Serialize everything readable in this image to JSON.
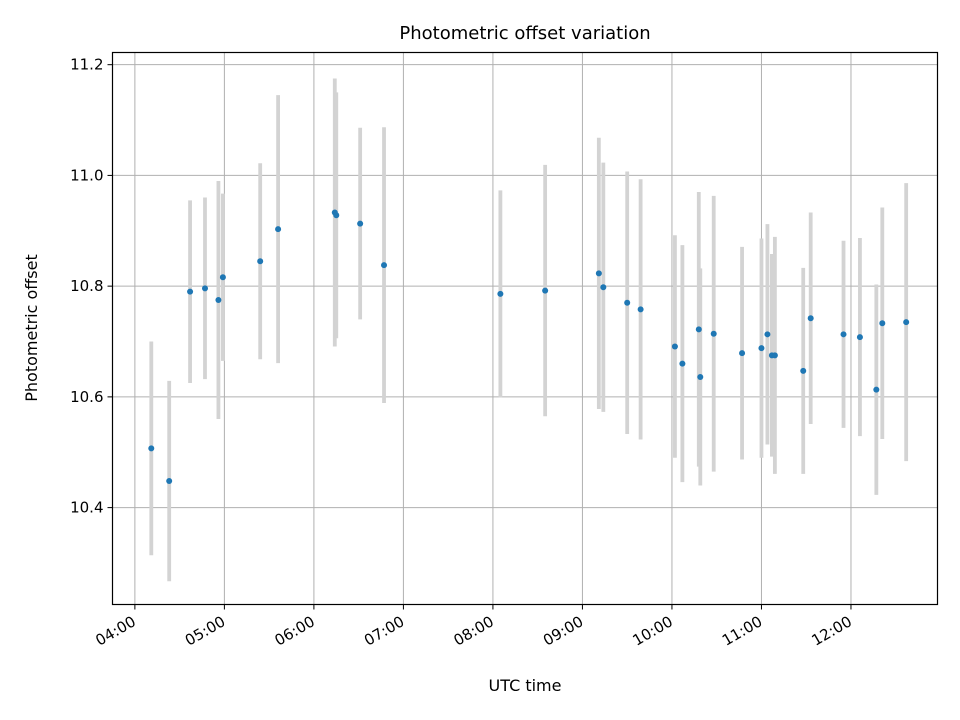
{
  "chart_data": {
    "type": "scatter",
    "title": "Photometric offset variation",
    "xlabel": "UTC time",
    "ylabel": "Photometric offset",
    "x_tick_labels": [
      "04:00",
      "05:00",
      "06:00",
      "07:00",
      "08:00",
      "09:00",
      "10:00",
      "11:00",
      "12:00"
    ],
    "y_ticks": [
      "10.4",
      "10.6",
      "10.8",
      "11.0",
      "11.2"
    ],
    "xlim": [
      "03:45",
      "12:58"
    ],
    "ylim": [
      10.225,
      11.222
    ],
    "grid": true,
    "marker_color": "#1f77b4",
    "errorbar_color": "#d3d3d3",
    "points": [
      {
        "x": "04:11",
        "y": 10.507,
        "err": 0.193
      },
      {
        "x": "04:23",
        "y": 10.448,
        "err": 0.181
      },
      {
        "x": "04:37",
        "y": 10.79,
        "err": 0.165
      },
      {
        "x": "04:47",
        "y": 10.796,
        "err": 0.164
      },
      {
        "x": "04:56",
        "y": 10.775,
        "err": 0.215
      },
      {
        "x": "04:59",
        "y": 10.816,
        "err": 0.151
      },
      {
        "x": "05:24",
        "y": 10.845,
        "err": 0.177
      },
      {
        "x": "05:36",
        "y": 10.903,
        "err": 0.242
      },
      {
        "x": "06:14",
        "y": 10.933,
        "err": 0.242
      },
      {
        "x": "06:15",
        "y": 10.928,
        "err": 0.222
      },
      {
        "x": "06:31",
        "y": 10.913,
        "err": 0.173
      },
      {
        "x": "06:47",
        "y": 10.838,
        "err": 0.249
      },
      {
        "x": "08:05",
        "y": 10.786,
        "err": 0.187
      },
      {
        "x": "08:35",
        "y": 10.792,
        "err": 0.227
      },
      {
        "x": "09:11",
        "y": 10.823,
        "err": 0.245
      },
      {
        "x": "09:14",
        "y": 10.798,
        "err": 0.225
      },
      {
        "x": "09:30",
        "y": 10.77,
        "err": 0.237
      },
      {
        "x": "09:39",
        "y": 10.758,
        "err": 0.235
      },
      {
        "x": "10:02",
        "y": 10.691,
        "err": 0.201
      },
      {
        "x": "10:07",
        "y": 10.66,
        "err": 0.214
      },
      {
        "x": "10:18",
        "y": 10.722,
        "err": 0.248
      },
      {
        "x": "10:19",
        "y": 10.636,
        "err": 0.196
      },
      {
        "x": "10:28",
        "y": 10.714,
        "err": 0.249
      },
      {
        "x": "10:47",
        "y": 10.679,
        "err": 0.192
      },
      {
        "x": "11:00",
        "y": 10.688,
        "err": 0.198
      },
      {
        "x": "11:04",
        "y": 10.713,
        "err": 0.199
      },
      {
        "x": "11:07",
        "y": 10.675,
        "err": 0.183
      },
      {
        "x": "11:09",
        "y": 10.675,
        "err": 0.214
      },
      {
        "x": "11:28",
        "y": 10.647,
        "err": 0.186
      },
      {
        "x": "11:33",
        "y": 10.742,
        "err": 0.191
      },
      {
        "x": "11:55",
        "y": 10.713,
        "err": 0.169
      },
      {
        "x": "12:06",
        "y": 10.708,
        "err": 0.179
      },
      {
        "x": "12:17",
        "y": 10.613,
        "err": 0.19
      },
      {
        "x": "12:21",
        "y": 10.733,
        "err": 0.209
      },
      {
        "x": "12:37",
        "y": 10.735,
        "err": 0.251
      }
    ]
  }
}
